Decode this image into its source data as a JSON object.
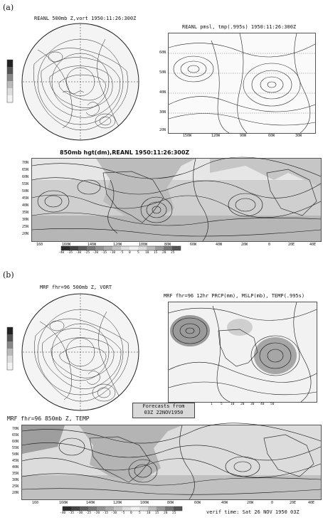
{
  "panel_a": {
    "label": "(a)",
    "polar_title": "REANL  500mb Z,vort  1950:11:26:300Z",
    "pmsl_title": "REANL pmsl,  tmp(.995s) 1950:11:26:300Z",
    "hgt_title": "850mb hgt(dm),REANL 1950:11:26:300Z",
    "lat_labels": [
      "70N",
      "65N",
      "60N",
      "55N",
      "50N",
      "45N",
      "40N",
      "35N",
      "30N",
      "25N",
      "20N"
    ],
    "lon_labels": [
      "160",
      "160W",
      "140W",
      "120W",
      "100W",
      "80W",
      "60W",
      "40W",
      "20W",
      "0",
      "20E",
      "40E"
    ],
    "colorbar": [
      "-40",
      "-35",
      "-30",
      "-25",
      "-20",
      "-15",
      "-10",
      "-5",
      "0",
      "5",
      "10",
      "15",
      "20",
      "25"
    ],
    "pmsl_lat": [
      "60N",
      "50N",
      "40N",
      "30N",
      "20N"
    ],
    "pmsl_lon": [
      "150W",
      "120W",
      "90W",
      "60W",
      "30W"
    ]
  },
  "panel_b": {
    "label": "(b)",
    "polar_title": "MRF fhr=96 500mb Z, VORT",
    "precip_title": "MRF fhr=96 12hr PRCP(mm), MSLP(mb), TEMP(.995s)",
    "forecast_line1": "Forecasts from",
    "forecast_line2": "03Z 22NOV1950",
    "hgt_title": "MRF fhr=96 850mb Z, TEMP",
    "verif": "verif time: Sat 26 NOV 1950 03Z",
    "lat_labels": [
      "70N",
      "65N",
      "60N",
      "55N",
      "50N",
      "45N",
      "40N",
      "35N",
      "30N",
      "25N",
      "20N"
    ],
    "lon_labels": [
      "160",
      "160W",
      "140W",
      "120W",
      "100W",
      "80W",
      "60W",
      "40W",
      "20W",
      "0",
      "20E",
      "40E"
    ],
    "colorbar": [
      "-40",
      "-35",
      "-30",
      "-25",
      "-20",
      "-15",
      "-10",
      "-5",
      "0",
      "5",
      "10",
      "15",
      "20",
      "25"
    ],
    "precip_scale": [
      "1",
      "5",
      "10",
      "20",
      "30",
      "40",
      "50"
    ]
  },
  "colors": {
    "contour": "#222222",
    "shade_light": "#d8d8d8",
    "shade_mid": "#b8b8b8",
    "shade_dark": "#8c8c8c"
  }
}
